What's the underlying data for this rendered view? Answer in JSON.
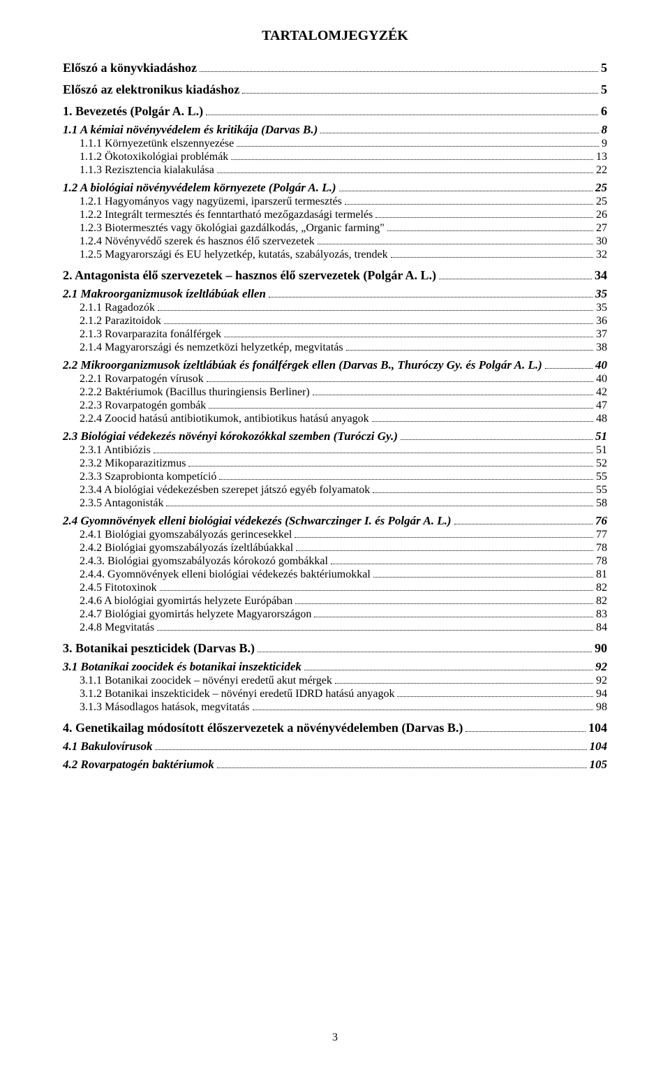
{
  "title": "TARTALOMJEGYZÉK",
  "page_number": "3",
  "entries": [
    {
      "level": 0,
      "label": "Előszó a könyvkiadáshoz",
      "page": "5"
    },
    {
      "level": 0,
      "label": "Előszó az elektronikus kiadáshoz",
      "page": "5"
    },
    {
      "level": 1,
      "label": "1. Bevezetés (Polgár A. L.)",
      "page": "6"
    },
    {
      "level": 2,
      "label": "1.1 A kémiai növényvédelem és kritikája (Darvas B.)",
      "page": "8"
    },
    {
      "level": 3,
      "label": "1.1.1 Környezetünk elszennyezése",
      "page": "9"
    },
    {
      "level": 3,
      "label": "1.1.2 Ökotoxikológiai problémák",
      "page": "13"
    },
    {
      "level": 3,
      "label": "1.1.3 Rezisztencia kialakulása",
      "page": "22"
    },
    {
      "level": 2,
      "label": "1.2 A biológiai növényvédelem környezete (Polgár A. L.)",
      "page": "25"
    },
    {
      "level": 3,
      "label": "1.2.1 Hagyományos vagy nagyüzemi, iparszerű termesztés",
      "page": "25"
    },
    {
      "level": 3,
      "label": "1.2.2 Integrált termesztés és fenntartható mezőgazdasági termelés",
      "page": "26"
    },
    {
      "level": 3,
      "label": "1.2.3 Biotermesztés vagy ökológiai gazdálkodás, „Organic farming\"",
      "page": "27"
    },
    {
      "level": 3,
      "label": "1.2.4 Növényvédő szerek és hasznos élő szervezetek",
      "page": "30"
    },
    {
      "level": 3,
      "label": "1.2.5 Magyarországi és EU helyzetkép, kutatás, szabályozás, trendek",
      "page": "32"
    },
    {
      "level": 1,
      "label": "2. Antagonista élő szervezetek – hasznos élő szervezetek (Polgár A. L.)",
      "page": "34"
    },
    {
      "level": 2,
      "label": "2.1 Makroorganizmusok ízeltlábúak ellen",
      "page": "35"
    },
    {
      "level": 3,
      "label": "2.1.1 Ragadozók",
      "page": "35"
    },
    {
      "level": 3,
      "label": "2.1.2 Parazitoidok",
      "page": "36"
    },
    {
      "level": 3,
      "label": "2.1.3 Rovarparazita fonálférgek",
      "page": "37"
    },
    {
      "level": 3,
      "label": "2.1.4 Magyarországi és nemzetközi helyzetkép, megvitatás",
      "page": "38"
    },
    {
      "level": 2,
      "label": "2.2 Mikroorganizmusok ízeltlábúak és fonálférgek ellen (Darvas B., Thuróczy Gy. és Polgár A. L.)",
      "page": "40"
    },
    {
      "level": 3,
      "label": "2.2.1 Rovarpatogén vírusok",
      "page": "40"
    },
    {
      "level": 3,
      "label": "2.2.2 Baktériumok (Bacillus thuringiensis Berliner)",
      "page": "42"
    },
    {
      "level": 3,
      "label": "2.2.3 Rovarpatogén gombák",
      "page": "47"
    },
    {
      "level": 3,
      "label": "2.2.4 Zoocid hatású antibiotikumok, antibiotikus hatású anyagok",
      "page": "48"
    },
    {
      "level": 2,
      "label": "2.3 Biológiai védekezés növényi kórokozókkal szemben (Turóczi Gy.)",
      "page": "51"
    },
    {
      "level": 3,
      "label": "2.3.1 Antibiózis",
      "page": "51"
    },
    {
      "level": 3,
      "label": "2.3.2 Mikoparazitizmus",
      "page": "52"
    },
    {
      "level": 3,
      "label": "2.3.3 Szaprobionta kompetíció",
      "page": "55"
    },
    {
      "level": 3,
      "label": "2.3.4 A biológiai védekezésben szerepet játszó egyéb folyamatok",
      "page": "55"
    },
    {
      "level": 3,
      "label": "2.3.5 Antagonisták",
      "page": "58"
    },
    {
      "level": 2,
      "label": "2.4 Gyomnövények elleni biológiai védekezés (Schwarczinger I. és Polgár A. L.)",
      "page": "76"
    },
    {
      "level": 3,
      "label": "2.4.1 Biológiai gyomszabályozás gerincesekkel",
      "page": "77"
    },
    {
      "level": 3,
      "label": "2.4.2 Biológiai gyomszabályozás ízeltlábúakkal",
      "page": "78"
    },
    {
      "level": 3,
      "label": "2.4.3. Biológiai gyomszabályozás kórokozó gombákkal",
      "page": "78"
    },
    {
      "level": 3,
      "label": "2.4.4. Gyomnövények elleni biológiai védekezés baktériumokkal",
      "page": "81"
    },
    {
      "level": 3,
      "label": "2.4.5 Fitotoxinok",
      "page": "82"
    },
    {
      "level": 3,
      "label": "2.4.6 A biológiai gyomirtás helyzete Európában",
      "page": "82"
    },
    {
      "level": 3,
      "label": "2.4.7 Biológiai gyomirtás helyzete Magyarországon",
      "page": "83"
    },
    {
      "level": 3,
      "label": "2.4.8 Megvitatás",
      "page": "84"
    },
    {
      "level": 1,
      "label": "3. Botanikai peszticidek (Darvas B.)",
      "page": "90"
    },
    {
      "level": 2,
      "label": "3.1 Botanikai zoocidek és botanikai inszekticidek",
      "page": "92"
    },
    {
      "level": 3,
      "label": "3.1.1 Botanikai zoocidek – növényi eredetű akut mérgek",
      "page": "92"
    },
    {
      "level": 3,
      "label": "3.1.2 Botanikai inszekticidek – növényi eredetű IDRD hatású anyagok",
      "page": "94"
    },
    {
      "level": 3,
      "label": "3.1.3 Másodlagos hatások, megvitatás",
      "page": "98"
    },
    {
      "level": 1,
      "label": "4. Genetikailag módosított élőszervezetek a növényvédelemben (Darvas B.)",
      "page": "104"
    },
    {
      "level": 2,
      "label": "4.1 Bakulovírusok",
      "page": "104"
    },
    {
      "level": 2,
      "label": "4.2 Rovarpatogén baktériumok",
      "page": "105"
    }
  ]
}
